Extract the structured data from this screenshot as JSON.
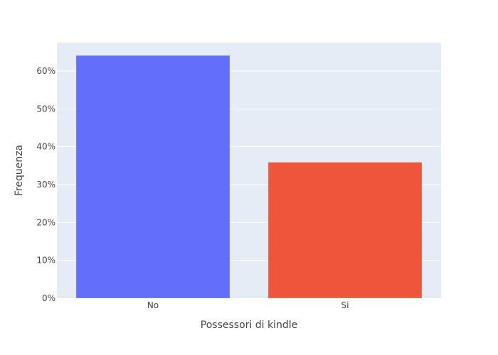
{
  "chart_data": {
    "type": "bar",
    "categories": [
      "No",
      "Si"
    ],
    "values": [
      64.1,
      35.9
    ],
    "value_unit": "%",
    "xlabel": "Possessori di kindle",
    "ylabel": "Frequenza",
    "ylim": [
      0,
      67.5
    ],
    "yticks": [
      0,
      10,
      20,
      30,
      40,
      50,
      60
    ],
    "ytick_labels": [
      "0%",
      "10%",
      "20%",
      "30%",
      "40%",
      "50%",
      "60%"
    ],
    "bar_colors": [
      "#636efa",
      "#ef553b"
    ],
    "plot_background": "#e5ecf6",
    "grid": true,
    "legend": false
  }
}
